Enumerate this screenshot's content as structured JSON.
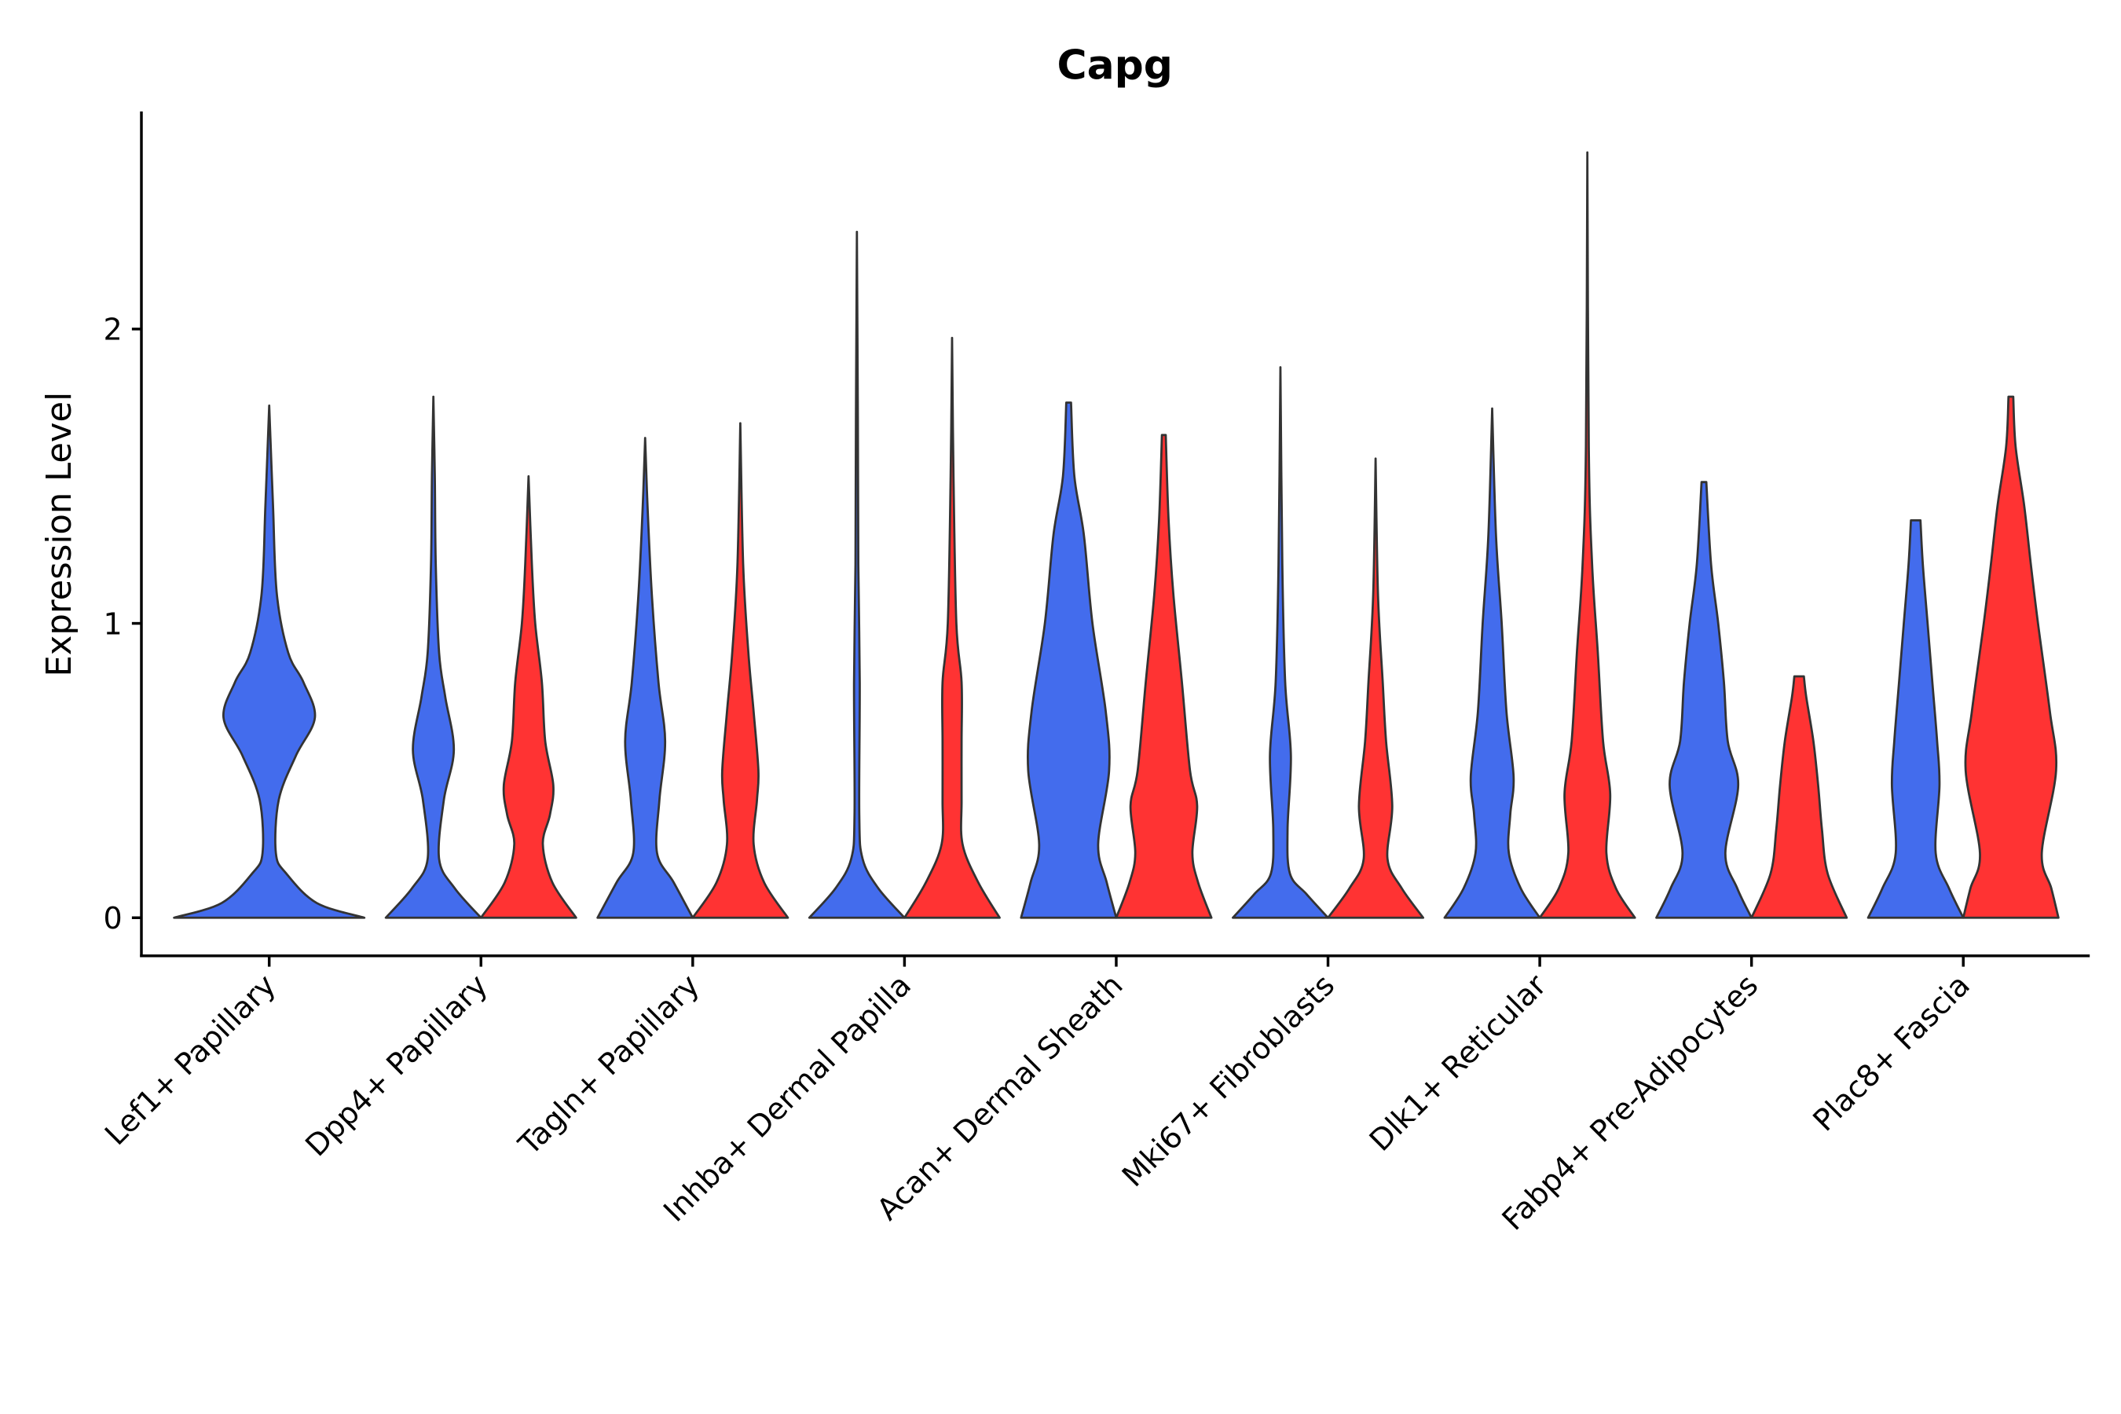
{
  "chart_data": {
    "type": "violin",
    "title": "Capg",
    "xlabel": "",
    "ylabel": "Expression Level",
    "ylim": [
      -0.13,
      2.75
    ],
    "yticks": [
      "0",
      "1",
      "2"
    ],
    "grid": false,
    "legend": "none",
    "categories": [
      "Lef1+ Papillary",
      "Dpp4+ Papillary",
      "Tagln+ Papillary",
      "Inhba+ Dermal Papilla",
      "Acan+ Dermal Sheath",
      "Mki67+ Fibroblasts",
      "Dlk1+ Reticular",
      "Fabp4+ Pre-Adipocytes",
      "Plac8+ Fascia"
    ],
    "series_colors": [
      "#436ced",
      "#ff3333"
    ],
    "violins": [
      {
        "category": 0,
        "series": 0,
        "single": true,
        "max": 1.74,
        "profile": [
          [
            0,
            1
          ],
          [
            0.05,
            0.5
          ],
          [
            0.15,
            0.18
          ],
          [
            0.22,
            0.07
          ],
          [
            0.4,
            0.1
          ],
          [
            0.55,
            0.28
          ],
          [
            0.68,
            0.48
          ],
          [
            0.8,
            0.36
          ],
          [
            0.9,
            0.2
          ],
          [
            1.1,
            0.08
          ],
          [
            1.4,
            0.04
          ],
          [
            1.74,
            0
          ]
        ]
      },
      {
        "category": 1,
        "series": 0,
        "max": 1.77,
        "profile": [
          [
            0,
            1
          ],
          [
            0.1,
            0.45
          ],
          [
            0.2,
            0.12
          ],
          [
            0.4,
            0.22
          ],
          [
            0.57,
            0.43
          ],
          [
            0.75,
            0.25
          ],
          [
            0.9,
            0.12
          ],
          [
            1.2,
            0.05
          ],
          [
            1.5,
            0.03
          ],
          [
            1.77,
            0
          ]
        ]
      },
      {
        "category": 1,
        "series": 1,
        "max": 1.5,
        "profile": [
          [
            0,
            1
          ],
          [
            0.12,
            0.5
          ],
          [
            0.25,
            0.3
          ],
          [
            0.35,
            0.45
          ],
          [
            0.45,
            0.52
          ],
          [
            0.6,
            0.35
          ],
          [
            0.8,
            0.28
          ],
          [
            1.0,
            0.14
          ],
          [
            1.2,
            0.07
          ],
          [
            1.5,
            0
          ]
        ]
      },
      {
        "category": 2,
        "series": 0,
        "max": 1.63,
        "profile": [
          [
            0,
            1
          ],
          [
            0.12,
            0.6
          ],
          [
            0.22,
            0.25
          ],
          [
            0.4,
            0.3
          ],
          [
            0.6,
            0.42
          ],
          [
            0.8,
            0.28
          ],
          [
            1.1,
            0.14
          ],
          [
            1.4,
            0.05
          ],
          [
            1.63,
            0
          ]
        ]
      },
      {
        "category": 2,
        "series": 1,
        "max": 1.68,
        "profile": [
          [
            0,
            1
          ],
          [
            0.12,
            0.5
          ],
          [
            0.25,
            0.28
          ],
          [
            0.4,
            0.35
          ],
          [
            0.5,
            0.38
          ],
          [
            0.7,
            0.28
          ],
          [
            0.9,
            0.17
          ],
          [
            1.2,
            0.06
          ],
          [
            1.68,
            0
          ]
        ]
      },
      {
        "category": 3,
        "series": 0,
        "max": 2.33,
        "profile": [
          [
            0,
            1
          ],
          [
            0.1,
            0.45
          ],
          [
            0.2,
            0.12
          ],
          [
            0.35,
            0.05
          ],
          [
            0.8,
            0.06
          ],
          [
            1.2,
            0.03
          ],
          [
            1.7,
            0.02
          ],
          [
            2.33,
            0
          ]
        ]
      },
      {
        "category": 3,
        "series": 1,
        "max": 1.97,
        "profile": [
          [
            0,
            1
          ],
          [
            0.12,
            0.55
          ],
          [
            0.25,
            0.22
          ],
          [
            0.4,
            0.2
          ],
          [
            0.6,
            0.2
          ],
          [
            0.8,
            0.2
          ],
          [
            1.0,
            0.09
          ],
          [
            1.5,
            0.03
          ],
          [
            1.97,
            0
          ]
        ]
      },
      {
        "category": 4,
        "series": 0,
        "max": 1.75,
        "profile": [
          [
            0,
            1
          ],
          [
            0.12,
            0.8
          ],
          [
            0.25,
            0.62
          ],
          [
            0.5,
            0.85
          ],
          [
            0.7,
            0.78
          ],
          [
            1.0,
            0.5
          ],
          [
            1.3,
            0.32
          ],
          [
            1.5,
            0.12
          ],
          [
            1.75,
            0.05
          ]
        ]
      },
      {
        "category": 4,
        "series": 1,
        "max": 1.64,
        "profile": [
          [
            0,
            1
          ],
          [
            0.12,
            0.72
          ],
          [
            0.22,
            0.6
          ],
          [
            0.38,
            0.7
          ],
          [
            0.5,
            0.55
          ],
          [
            0.8,
            0.38
          ],
          [
            1.1,
            0.2
          ],
          [
            1.35,
            0.1
          ],
          [
            1.64,
            0.04
          ]
        ]
      },
      {
        "category": 5,
        "series": 0,
        "max": 1.87,
        "profile": [
          [
            0,
            1
          ],
          [
            0.08,
            0.55
          ],
          [
            0.15,
            0.2
          ],
          [
            0.3,
            0.15
          ],
          [
            0.55,
            0.22
          ],
          [
            0.8,
            0.1
          ],
          [
            1.2,
            0.04
          ],
          [
            1.87,
            0
          ]
        ]
      },
      {
        "category": 5,
        "series": 1,
        "max": 1.56,
        "profile": [
          [
            0,
            1
          ],
          [
            0.1,
            0.55
          ],
          [
            0.2,
            0.25
          ],
          [
            0.38,
            0.35
          ],
          [
            0.6,
            0.22
          ],
          [
            0.8,
            0.15
          ],
          [
            1.1,
            0.05
          ],
          [
            1.56,
            0
          ]
        ]
      },
      {
        "category": 6,
        "series": 0,
        "max": 1.73,
        "profile": [
          [
            0,
            1
          ],
          [
            0.1,
            0.6
          ],
          [
            0.22,
            0.35
          ],
          [
            0.35,
            0.38
          ],
          [
            0.48,
            0.45
          ],
          [
            0.7,
            0.3
          ],
          [
            1.0,
            0.2
          ],
          [
            1.3,
            0.08
          ],
          [
            1.73,
            0
          ]
        ]
      },
      {
        "category": 6,
        "series": 1,
        "max": 2.6,
        "profile": [
          [
            0,
            1
          ],
          [
            0.1,
            0.6
          ],
          [
            0.22,
            0.4
          ],
          [
            0.42,
            0.48
          ],
          [
            0.6,
            0.33
          ],
          [
            0.9,
            0.22
          ],
          [
            1.2,
            0.1
          ],
          [
            1.6,
            0.03
          ],
          [
            2.6,
            0
          ]
        ]
      },
      {
        "category": 7,
        "series": 0,
        "max": 1.48,
        "profile": [
          [
            0,
            1
          ],
          [
            0.1,
            0.7
          ],
          [
            0.22,
            0.45
          ],
          [
            0.45,
            0.72
          ],
          [
            0.6,
            0.5
          ],
          [
            0.8,
            0.42
          ],
          [
            1.0,
            0.3
          ],
          [
            1.2,
            0.15
          ],
          [
            1.48,
            0.05
          ]
        ]
      },
      {
        "category": 7,
        "series": 1,
        "max": 0.82,
        "profile": [
          [
            0,
            1
          ],
          [
            0.15,
            0.6
          ],
          [
            0.3,
            0.48
          ],
          [
            0.45,
            0.4
          ],
          [
            0.6,
            0.3
          ],
          [
            0.75,
            0.15
          ],
          [
            0.82,
            0.1
          ]
        ]
      },
      {
        "category": 8,
        "series": 0,
        "max": 1.35,
        "profile": [
          [
            0,
            1
          ],
          [
            0.1,
            0.7
          ],
          [
            0.22,
            0.42
          ],
          [
            0.45,
            0.5
          ],
          [
            0.6,
            0.45
          ],
          [
            0.8,
            0.35
          ],
          [
            1.0,
            0.25
          ],
          [
            1.2,
            0.15
          ],
          [
            1.35,
            0.1
          ]
        ]
      },
      {
        "category": 8,
        "series": 1,
        "max": 1.77,
        "profile": [
          [
            0,
            1
          ],
          [
            0.1,
            0.85
          ],
          [
            0.22,
            0.65
          ],
          [
            0.5,
            0.95
          ],
          [
            0.7,
            0.82
          ],
          [
            1.0,
            0.57
          ],
          [
            1.2,
            0.42
          ],
          [
            1.4,
            0.28
          ],
          [
            1.6,
            0.1
          ],
          [
            1.77,
            0.05
          ]
        ]
      }
    ]
  }
}
